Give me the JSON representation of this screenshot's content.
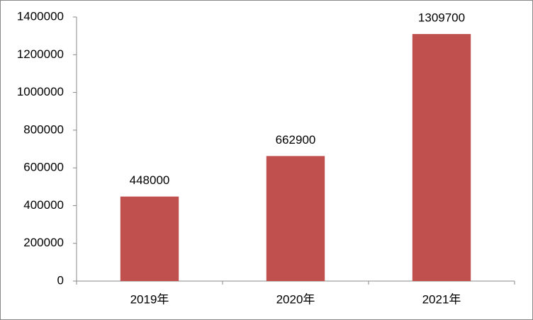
{
  "chart_data": {
    "type": "bar",
    "categories": [
      "2019年",
      "2020年",
      "2021年"
    ],
    "values": [
      448000,
      662900,
      1309700
    ],
    "color": "#c0504d",
    "ylim": [
      0,
      1400000
    ],
    "yticks": [
      0,
      200000,
      400000,
      600000,
      800000,
      1000000,
      1200000,
      1400000
    ],
    "grid": false
  }
}
